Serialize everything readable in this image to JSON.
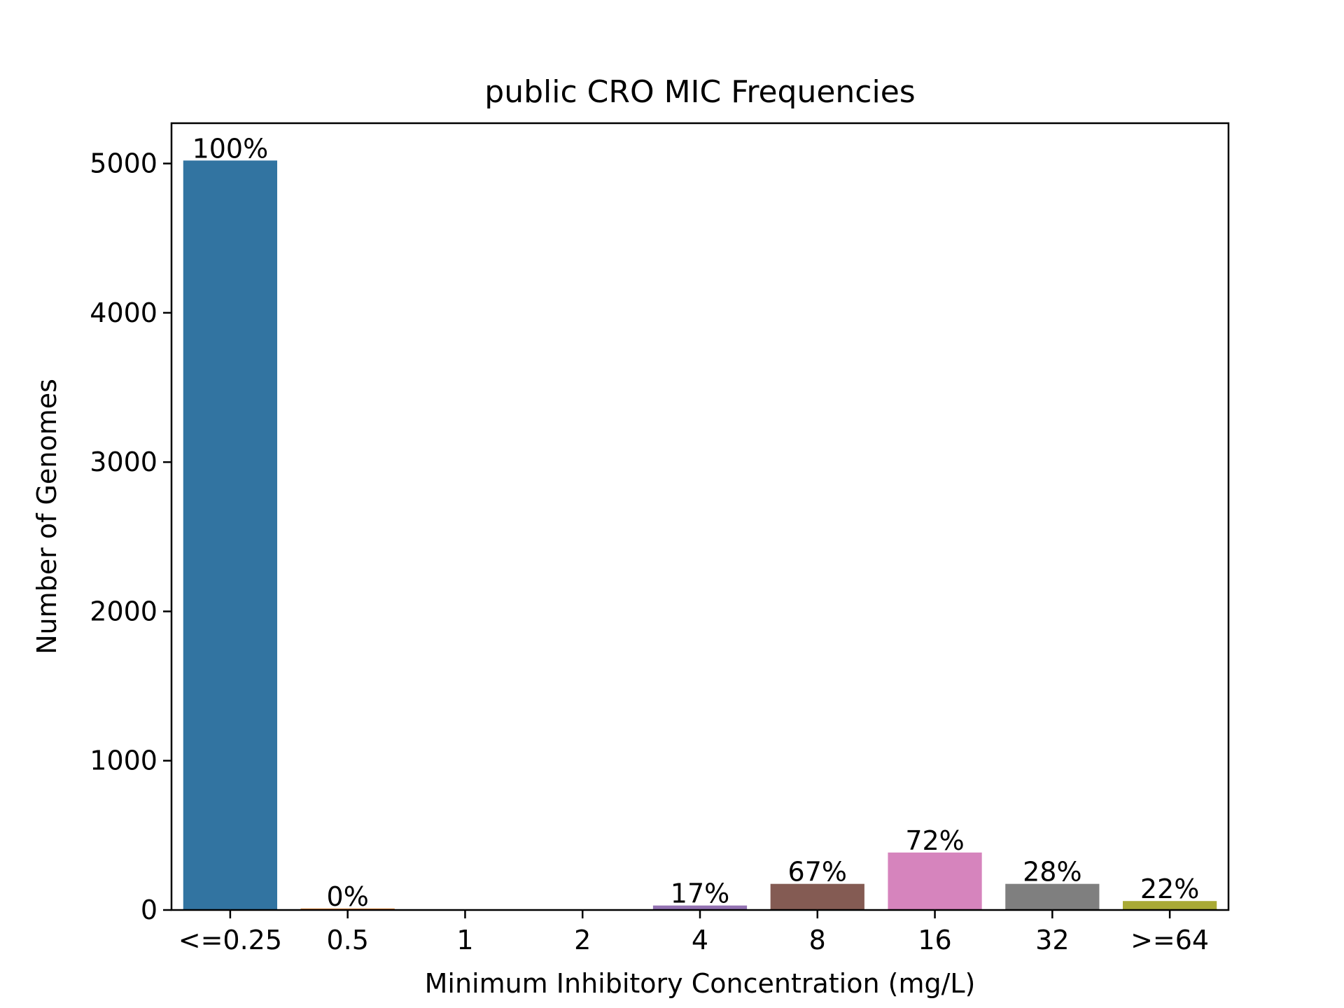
{
  "chart_data": {
    "type": "bar",
    "title": "public CRO MIC Frequencies",
    "xlabel": "Minimum Inhibitory Concentration (mg/L)",
    "ylabel": "Number of Genomes",
    "categories": [
      "<=0.25",
      "0.5",
      "1",
      "2",
      "4",
      "8",
      "16",
      "32",
      ">=64"
    ],
    "values": [
      5020,
      10,
      0,
      0,
      30,
      175,
      385,
      175,
      60
    ],
    "data_labels": [
      "100%",
      "0%",
      "",
      "",
      "17%",
      "67%",
      "72%",
      "28%",
      "22%"
    ],
    "colors": [
      "#3274a1",
      "#e1812c",
      "#3a923a",
      "#c03d3e",
      "#9372b2",
      "#845b53",
      "#d684bd",
      "#7f7f7f",
      "#a9aa35"
    ],
    "ylim": [
      0,
      5270
    ],
    "yticks": [
      0,
      1000,
      2000,
      3000,
      4000,
      5000
    ],
    "grid": false,
    "legend": "none"
  }
}
